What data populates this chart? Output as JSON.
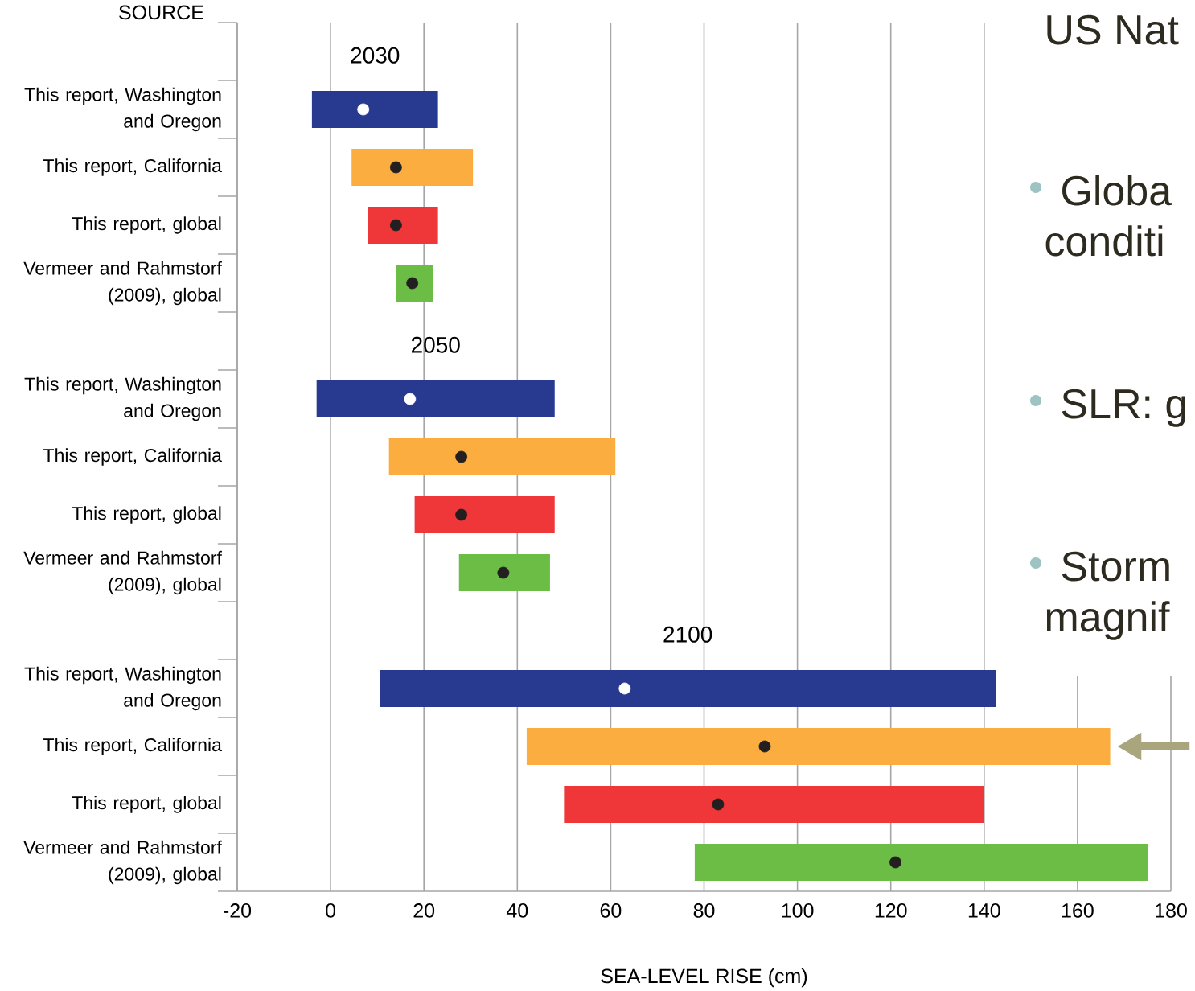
{
  "chart_data": {
    "type": "bar",
    "orientation": "horizontal",
    "ylabel": "SOURCE",
    "xlabel": "SEA-LEVEL RISE (cm)",
    "categories": [
      null,
      "This report, Washington and Oregon",
      "This report, California",
      "This report, global",
      "Vermeer and Rahmstorf (2009), global",
      null,
      "This report, Washington and Oregon",
      "This report, California",
      "This report, global",
      "Vermeer and Rahmstorf (2009), global",
      null,
      "This report, Washington and Oregon",
      "This report, California",
      "This report, global",
      "Vermeer and Rahmstorf (2009), global"
    ],
    "series": [
      {
        "base": [
          null,
          -4,
          4.5,
          8,
          14,
          null,
          -3,
          12.5,
          18,
          27.5,
          null,
          10.5,
          42,
          50,
          78
        ],
        "values": [
          null,
          27,
          26,
          15,
          8,
          null,
          51,
          48.5,
          30,
          19.5,
          null,
          132,
          125,
          90,
          97
        ],
        "colors": [
          null,
          "#283a8f",
          "#fbad40",
          "#ef3739",
          "#6bbd45",
          null,
          "#283a8f",
          "#fbad40",
          "#ef3739",
          "#6bbd45",
          null,
          "#283a8f",
          "#fbad40",
          "#ef3739",
          "#6bbd45"
        ]
      },
      {
        "type": "scatter",
        "marker": "circle",
        "values": [
          null,
          7,
          14,
          14,
          17.5,
          null,
          17,
          28,
          28,
          37,
          null,
          63,
          93,
          83,
          121
        ],
        "colors": [
          null,
          "#ffffff",
          "#231f20",
          "#231f20",
          "#231f20",
          null,
          "#ffffff",
          "#231f20",
          "#231f20",
          "#231f20",
          null,
          "#ffffff",
          "#231f20",
          "#231f20",
          "#231f20"
        ]
      }
    ],
    "xlim": [
      -20,
      180
    ],
    "xticks": [
      -20,
      0,
      20,
      40,
      60,
      80,
      100,
      120,
      140,
      160,
      180
    ],
    "grid": "x",
    "annotations": [
      "2030",
      "2050",
      "2100",
      "US Nat",
      "Globa",
      "conditi",
      "SLR: g",
      "Storm",
      "magnif"
    ]
  }
}
